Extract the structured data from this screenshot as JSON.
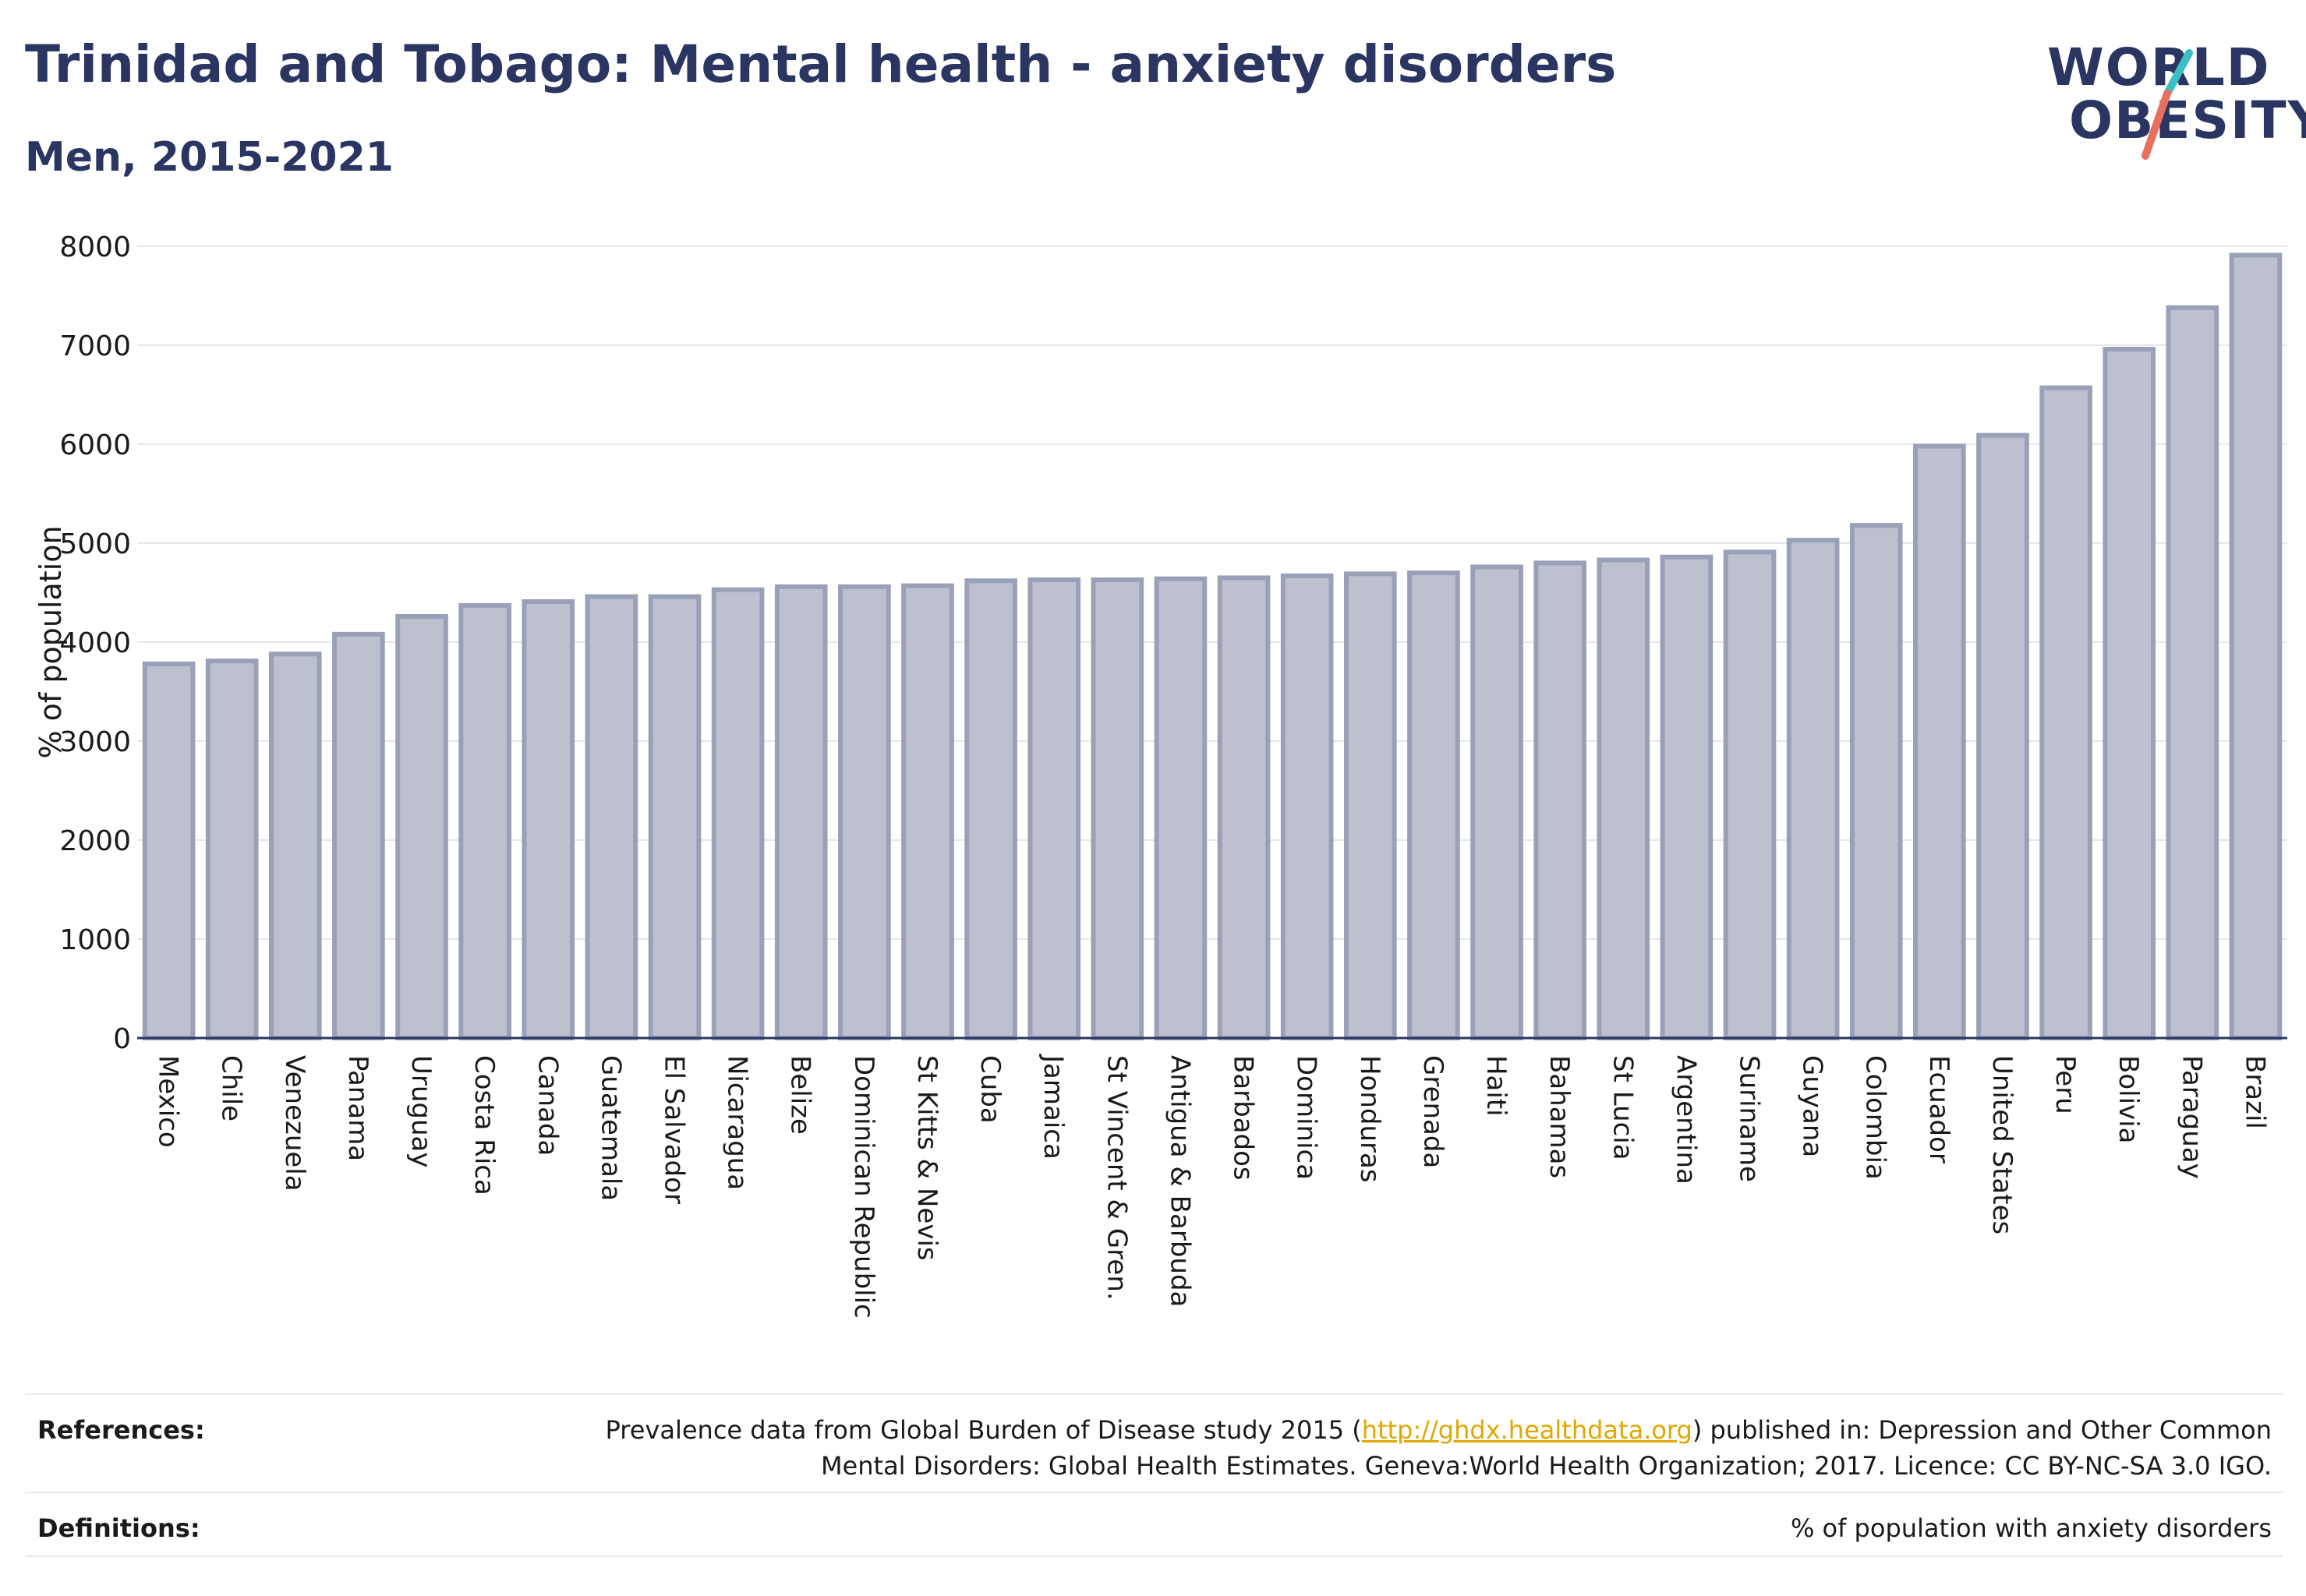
{
  "header": {
    "title": "Trinidad and Tobago: Mental health - anxiety disorders",
    "subtitle": "Men, 2015-2021"
  },
  "logo": {
    "line1": "WORLD",
    "line2": "OBESITY",
    "stroke_colors": [
      "#3bbfc4",
      "#e8705f"
    ]
  },
  "chart_data": {
    "type": "bar",
    "title": "Trinidad and Tobago: Mental health - anxiety disorders",
    "subtitle": "Men, 2015-2021",
    "ylabel": "% of population",
    "xlabel": "",
    "ylim": [
      0,
      8000
    ],
    "yticks": [
      0,
      1000,
      2000,
      3000,
      4000,
      5000,
      6000,
      7000,
      8000
    ],
    "grid": true,
    "bar_fill": "#bcc0cf",
    "bar_stroke": "#9aa0b8",
    "categories": [
      "Mexico",
      "Chile",
      "Venezuela",
      "Panama",
      "Uruguay",
      "Costa Rica",
      "Canada",
      "Guatemala",
      "El Salvador",
      "Nicaragua",
      "Belize",
      "Dominican Republic",
      "St Kitts & Nevis",
      "Cuba",
      "Jamaica",
      "St Vincent & Gren.",
      "Antigua & Barbuda",
      "Barbados",
      "Dominica",
      "Honduras",
      "Grenada",
      "Haiti",
      "Bahamas",
      "St Lucia",
      "Argentina",
      "Suriname",
      "Guyana",
      "Colombia",
      "Ecuador",
      "United States",
      "Peru",
      "Bolivia",
      "Paraguay",
      "Brazil"
    ],
    "values": [
      3780,
      3810,
      3880,
      4080,
      4260,
      4370,
      4410,
      4460,
      4460,
      4530,
      4560,
      4560,
      4570,
      4620,
      4630,
      4630,
      4640,
      4650,
      4670,
      4690,
      4700,
      4760,
      4800,
      4830,
      4860,
      4910,
      5030,
      5180,
      5980,
      6090,
      6570,
      6960,
      7380,
      7910
    ]
  },
  "footer": {
    "references_label": "References:",
    "references_text_1": "Prevalence data from Global Burden of Disease study 2015 (",
    "references_link": "http://ghdx.healthdata.org",
    "references_text_2": ") published in: Depression and Other Common",
    "references_text_3": "Mental Disorders: Global Health Estimates. Geneva:World Health Organization; 2017. Licence: CC BY-NC-SA 3.0 IGO.",
    "definitions_label": "Definitions:",
    "definitions_text": "% of population with anxiety disorders"
  }
}
